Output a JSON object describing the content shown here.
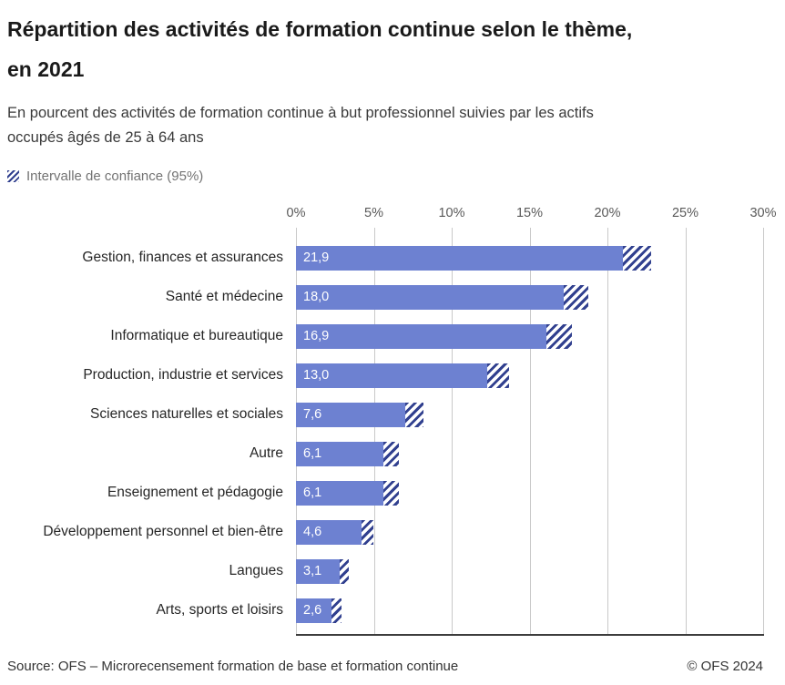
{
  "header": {
    "title": "Répartition des activités de formation continue selon le thème,\nen 2021",
    "subtitle": "En pourcent des activités de formation continue à but professionnel suivies par les actifs\noccupés âgés de 25 à 64 ans"
  },
  "legend": {
    "icon": "confidence-interval-hatch-swatch",
    "label": "Intervalle de confiance (95%)"
  },
  "chart_data": {
    "type": "bar",
    "orientation": "horizontal",
    "title": "Répartition des activités de formation continue selon le thème, en 2021",
    "xlabel": "",
    "ylabel": "",
    "xlim": [
      0,
      30
    ],
    "grid": true,
    "x_ticks": [
      {
        "value": 0,
        "label": "0%"
      },
      {
        "value": 5,
        "label": "5%"
      },
      {
        "value": 10,
        "label": "10%"
      },
      {
        "value": 15,
        "label": "15%"
      },
      {
        "value": 20,
        "label": "20%"
      },
      {
        "value": 25,
        "label": "25%"
      },
      {
        "value": 30,
        "label": "30%"
      }
    ],
    "categories": [
      "Gestion, finances et assurances",
      "Santé et médecine",
      "Informatique et bureautique",
      "Production, industrie et services",
      "Sciences naturelles et sociales",
      "Autre",
      "Enseignement et pédagogie",
      "Développement personnel et bien-être",
      "Langues",
      "Arts, sports et loisirs"
    ],
    "values": [
      21.9,
      18.0,
      16.9,
      13.0,
      7.6,
      6.1,
      6.1,
      4.6,
      3.1,
      2.6
    ],
    "value_labels": [
      "21,9",
      "18,0",
      "16,9",
      "13,0",
      "7,6",
      "6,1",
      "6,1",
      "4,6",
      "3,1",
      "2,6"
    ],
    "ci_low": [
      21.0,
      17.2,
      16.1,
      12.3,
      7.0,
      5.6,
      5.6,
      4.2,
      2.8,
      2.3
    ],
    "ci_high": [
      22.8,
      18.8,
      17.7,
      13.7,
      8.2,
      6.6,
      6.6,
      5.0,
      3.4,
      2.9
    ],
    "bar_color": "#6d81d1",
    "hatch_color": "#31408f",
    "legend": [
      {
        "label": "Intervalle de confiance (95%)",
        "style": "hatch"
      }
    ]
  },
  "footer": {
    "source": "Source: OFS – Microrecensement formation de base et formation continue",
    "copyright": "© OFS 2024"
  }
}
